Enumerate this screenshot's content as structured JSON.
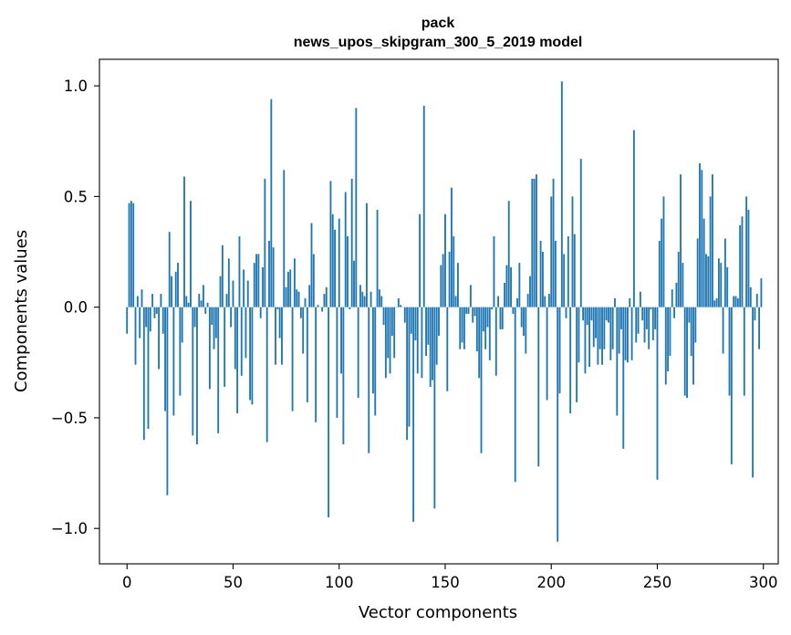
{
  "chart_data": {
    "type": "bar",
    "title": "pack",
    "subtitle": "news_upos_skipgram_300_5_2019 model",
    "xlabel": "Vector components",
    "ylabel": "Components values",
    "xlim": [
      -13,
      307
    ],
    "ylim": [
      -1.16,
      1.12
    ],
    "x_ticks": [
      0,
      50,
      100,
      150,
      200,
      250,
      300
    ],
    "x_tick_labels": [
      "0",
      "50",
      "100",
      "150",
      "200",
      "250",
      "300"
    ],
    "y_ticks": [
      -1.0,
      -0.5,
      0.0,
      0.5,
      1.0
    ],
    "y_tick_labels": [
      "−1.0",
      "−0.5",
      "0.0",
      "0.5",
      "1.0"
    ],
    "bar_color": "#1f77b4",
    "x": [
      0,
      1,
      2,
      3,
      4,
      5,
      6,
      7,
      8,
      9,
      10,
      11,
      12,
      13,
      14,
      15,
      16,
      17,
      18,
      19,
      20,
      21,
      22,
      23,
      24,
      25,
      26,
      27,
      28,
      29,
      30,
      31,
      32,
      33,
      34,
      35,
      36,
      37,
      38,
      39,
      40,
      41,
      42,
      43,
      44,
      45,
      46,
      47,
      48,
      49,
      50,
      51,
      52,
      53,
      54,
      55,
      56,
      57,
      58,
      59,
      60,
      61,
      62,
      63,
      64,
      65,
      66,
      67,
      68,
      69,
      70,
      71,
      72,
      73,
      74,
      75,
      76,
      77,
      78,
      79,
      80,
      81,
      82,
      83,
      84,
      85,
      86,
      87,
      88,
      89,
      90,
      91,
      92,
      93,
      94,
      95,
      96,
      97,
      98,
      99,
      100,
      101,
      102,
      103,
      104,
      105,
      106,
      107,
      108,
      109,
      110,
      111,
      112,
      113,
      114,
      115,
      116,
      117,
      118,
      119,
      120,
      121,
      122,
      123,
      124,
      125,
      126,
      127,
      128,
      129,
      130,
      131,
      132,
      133,
      134,
      135,
      136,
      137,
      138,
      139,
      140,
      141,
      142,
      143,
      144,
      145,
      146,
      147,
      148,
      149,
      150,
      151,
      152,
      153,
      154,
      155,
      156,
      157,
      158,
      159,
      160,
      161,
      162,
      163,
      164,
      165,
      166,
      167,
      168,
      169,
      170,
      171,
      172,
      173,
      174,
      175,
      176,
      177,
      178,
      179,
      180,
      181,
      182,
      183,
      184,
      185,
      186,
      187,
      188,
      189,
      190,
      191,
      192,
      193,
      194,
      195,
      196,
      197,
      198,
      199,
      200,
      201,
      202,
      203,
      204,
      205,
      206,
      207,
      208,
      209,
      210,
      211,
      212,
      213,
      214,
      215,
      216,
      217,
      218,
      219,
      220,
      221,
      222,
      223,
      224,
      225,
      226,
      227,
      228,
      229,
      230,
      231,
      232,
      233,
      234,
      235,
      236,
      237,
      238,
      239,
      240,
      241,
      242,
      243,
      244,
      245,
      246,
      247,
      248,
      249,
      250,
      251,
      252,
      253,
      254,
      255,
      256,
      257,
      258,
      259,
      260,
      261,
      262,
      263,
      264,
      265,
      266,
      267,
      268,
      269,
      270,
      271,
      272,
      273,
      274,
      275,
      276,
      277,
      278,
      279,
      280,
      281,
      282,
      283,
      284,
      285,
      286,
      287,
      288,
      289,
      290,
      291,
      292,
      293,
      294,
      295,
      296,
      297,
      298,
      299
    ],
    "values": [
      -0.12,
      0.47,
      0.48,
      0.47,
      -0.26,
      0.05,
      -0.14,
      0.08,
      -0.6,
      -0.09,
      -0.55,
      -0.11,
      0.06,
      -0.05,
      -0.03,
      -0.28,
      0.06,
      -0.12,
      -0.47,
      -0.85,
      0.34,
      0.14,
      -0.49,
      0.16,
      0.2,
      -0.4,
      -0.16,
      0.59,
      0.05,
      0.02,
      0.48,
      -0.58,
      -0.09,
      -0.62,
      0.06,
      0.03,
      0.1,
      -0.03,
      0.02,
      -0.37,
      -0.08,
      -0.19,
      -0.14,
      -0.57,
      0.14,
      0.28,
      -0.36,
      0.06,
      0.22,
      -0.09,
      0.12,
      -0.28,
      -0.48,
      0.32,
      -0.31,
      0.17,
      -0.23,
      0.12,
      -0.42,
      -0.44,
      0.2,
      0.24,
      0.24,
      -0.05,
      0.18,
      0.58,
      -0.61,
      0.3,
      0.94,
      0.27,
      -0.26,
      -0.01,
      -0.14,
      -0.26,
      0.62,
      0.09,
      0.16,
      0.17,
      -0.47,
      0.22,
      0.08,
      0.07,
      -0.05,
      -0.21,
      0.04,
      -0.43,
      0.1,
      0.38,
      0.24,
      -0.52,
      0.01,
      0.0,
      -0.02,
      0.06,
      0.09,
      -0.95,
      0.57,
      0.42,
      0.35,
      -0.5,
      0.4,
      -0.3,
      -0.62,
      0.52,
      0.32,
      -0.01,
      0.58,
      0.21,
      0.9,
      -0.41,
      0.1,
      0.07,
      0.05,
      0.47,
      -0.66,
      0.07,
      -0.39,
      -0.49,
      0.44,
      0.08,
      0.05,
      -0.08,
      -0.32,
      -0.23,
      -0.3,
      -0.13,
      -0.23,
      0.0,
      0.04,
      0.01,
      0.0,
      -0.07,
      -0.6,
      -0.54,
      -0.12,
      -0.97,
      -0.15,
      -0.3,
      0.42,
      -0.32,
      0.91,
      -0.22,
      -0.17,
      -0.36,
      -0.33,
      -0.91,
      -0.26,
      -0.13,
      0.19,
      0.24,
      0.42,
      -0.38,
      0.25,
      0.54,
      0.32,
      0.05,
      0.2,
      -0.19,
      -0.16,
      -0.19,
      -0.03,
      -0.03,
      0.1,
      -0.07,
      -0.04,
      -0.2,
      -0.32,
      -0.66,
      -0.11,
      -0.19,
      -0.09,
      -0.24,
      -0.01,
      0.32,
      -0.31,
      0.05,
      -0.1,
      -0.1,
      0.11,
      0.19,
      0.48,
      0.18,
      -0.03,
      -0.79,
      0.04,
      0.2,
      -0.09,
      -0.13,
      -0.21,
      0.06,
      0.14,
      0.58,
      0.58,
      0.6,
      -0.72,
      0.3,
      0.25,
      0.05,
      -0.42,
      0.06,
      0.5,
      0.58,
      0.3,
      -1.06,
      -0.39,
      1.02,
      0.24,
      -0.05,
      0.32,
      -0.48,
      0.5,
      0.33,
      -0.43,
      -0.25,
      0.67,
      -0.06,
      -0.3,
      -0.08,
      -0.27,
      -0.06,
      -0.18,
      -0.14,
      -0.26,
      -0.19,
      -0.26,
      -0.19,
      -0.06,
      -0.07,
      -0.24,
      -0.19,
      0.04,
      -0.49,
      -0.21,
      -0.1,
      -0.64,
      -0.24,
      -0.25,
      0.04,
      -0.24,
      0.8,
      -0.16,
      -0.12,
      0.07,
      -0.06,
      -0.16,
      -0.1,
      -0.19,
      -0.01,
      -0.15,
      -0.1,
      -0.78,
      0.3,
      0.4,
      0.5,
      -0.35,
      -0.29,
      -0.22,
      0.08,
      -0.05,
      0.11,
      0.25,
      0.6,
      0.2,
      -0.4,
      -0.41,
      -0.07,
      -0.22,
      -0.35,
      -0.16,
      0.31,
      0.65,
      0.62,
      0.4,
      0.24,
      0.23,
      0.5,
      0.6,
      0.03,
      0.04,
      0.22,
      0.2,
      -0.21,
      0.31,
      0.18,
      -0.4,
      -0.71,
      0.05,
      0.05,
      0.04,
      0.37,
      0.41,
      -0.4,
      0.5,
      0.44,
      0.09,
      -0.77,
      -0.06,
      0.06,
      -0.19,
      0.13
    ]
  }
}
